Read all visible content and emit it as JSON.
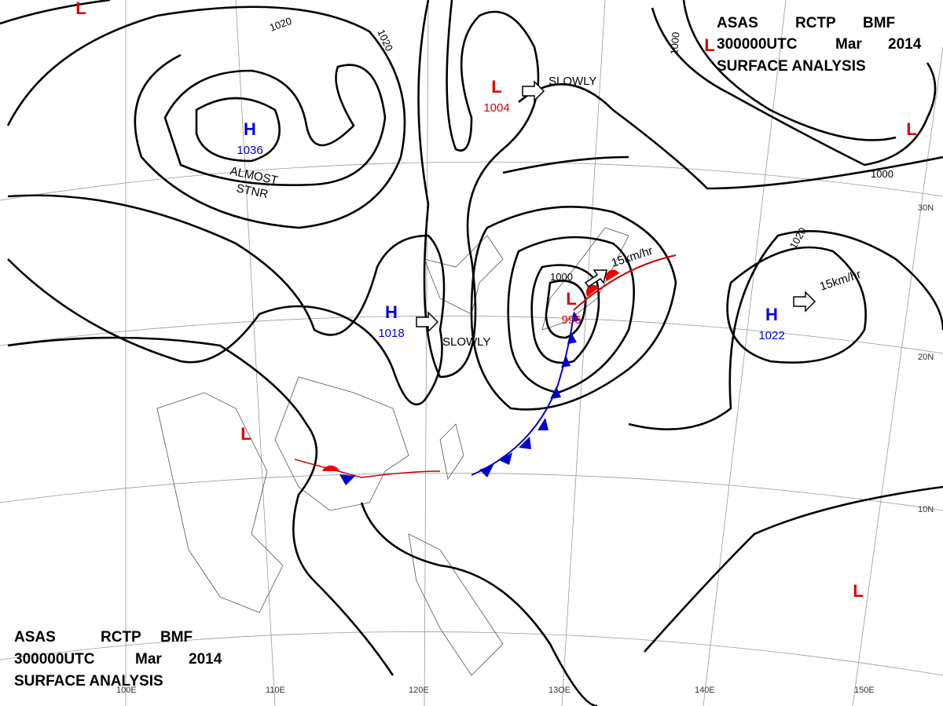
{
  "header_top": {
    "line1": [
      "ASAS",
      "RCTP",
      "BMF"
    ],
    "line2": [
      "300000UTC",
      "Mar",
      "2014"
    ],
    "line3": "SURFACE ANALYSIS"
  },
  "header_bottom": {
    "line1": [
      "ASAS",
      "RCTP",
      "BMF"
    ],
    "line2": [
      "300000UTC",
      "Mar",
      "2014"
    ],
    "line3": "SURFACE ANALYSIS"
  },
  "centers": [
    {
      "symbol": "H",
      "pressure": 1036
    },
    {
      "symbol": "L",
      "pressure": 1004
    },
    {
      "symbol": "H",
      "pressure": 1018
    },
    {
      "symbol": "L",
      "pressure": 996
    },
    {
      "symbol": "H",
      "pressure": 1022
    },
    {
      "symbol": "L"
    },
    {
      "symbol": "L"
    },
    {
      "symbol": "L"
    },
    {
      "symbol": "L"
    },
    {
      "symbol": "L"
    }
  ],
  "isobar_labels": [
    1020,
    1020,
    1000,
    1000,
    1020,
    1000
  ],
  "motion_labels": [
    "ALMOST",
    "STNR",
    "SLOWLY",
    "SLOWLY",
    "15km/hr",
    "15km/hr"
  ],
  "latitude_labels": [
    "30N",
    "20N",
    "10N"
  ],
  "longitude_labels": [
    "100E",
    "110E",
    "120E",
    "13OE",
    "140E",
    "150E"
  ]
}
